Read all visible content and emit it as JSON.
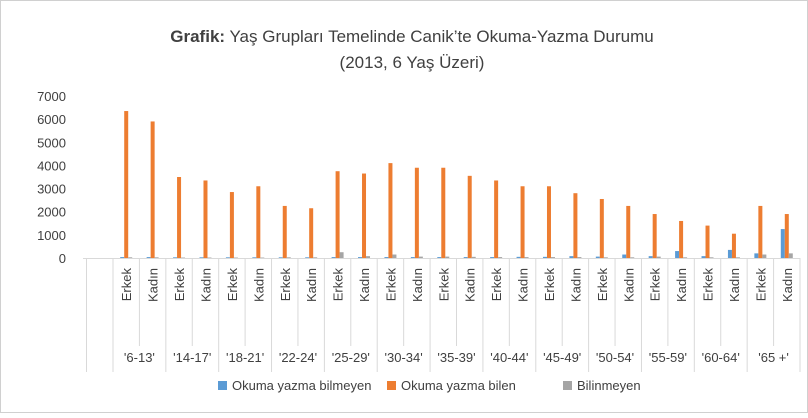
{
  "chart_data": {
    "type": "bar",
    "title_bold": "Grafik:",
    "title": "Yaş Grupları Temelinde Canik’te Okuma-Yazma Durumu",
    "subtitle": "(2013, 6 Yaş Üzeri)",
    "groups": [
      "'6-13'",
      "'14-17'",
      "'18-21'",
      "'22-24'",
      "'25-29'",
      "'30-34'",
      "'35-39'",
      "'40-44'",
      "'45-49'",
      "'50-54'",
      "'55-59'",
      "'60-64'",
      "'65 +'"
    ],
    "categories": [
      "Erkek",
      "Kadın",
      "Erkek",
      "Kadın",
      "Erkek",
      "Kadın",
      "Erkek",
      "Kadın",
      "Erkek",
      "Kadın",
      "Erkek",
      "Kadın",
      "Erkek",
      "Kadın",
      "Erkek",
      "Kadın",
      "Erkek",
      "Kadın",
      "Erkek",
      "Kadın",
      "Erkek",
      "Kadın",
      "Erkek",
      "Kadın",
      "Erkek",
      "Kadın"
    ],
    "series": [
      {
        "name": "Okuma yazma bilmeyen",
        "color": "#5b9bd5",
        "values": [
          40,
          40,
          30,
          30,
          30,
          30,
          30,
          30,
          40,
          40,
          40,
          40,
          40,
          40,
          40,
          50,
          50,
          80,
          60,
          150,
          80,
          300,
          80,
          350,
          200,
          1250
        ]
      },
      {
        "name": "Okuma yazma bilen",
        "color": "#ed7d31",
        "values": [
          6350,
          5900,
          3500,
          3350,
          2850,
          3100,
          2250,
          2150,
          3750,
          3650,
          4100,
          3900,
          3900,
          3550,
          3350,
          3100,
          3100,
          2800,
          2550,
          2250,
          1900,
          1600,
          1400,
          1050,
          2250,
          1900
        ]
      },
      {
        "name": "Bilinmeyen",
        "color": "#a5a5a5",
        "values": [
          30,
          30,
          20,
          20,
          20,
          20,
          30,
          30,
          250,
          80,
          150,
          60,
          60,
          50,
          40,
          40,
          40,
          40,
          30,
          30,
          60,
          30,
          30,
          30,
          150,
          200
        ]
      }
    ],
    "ylim": [
      0,
      7000
    ],
    "yticks": [
      0,
      1000,
      2000,
      3000,
      4000,
      5000,
      6000,
      7000
    ],
    "grid": false,
    "legend": "bottom"
  }
}
